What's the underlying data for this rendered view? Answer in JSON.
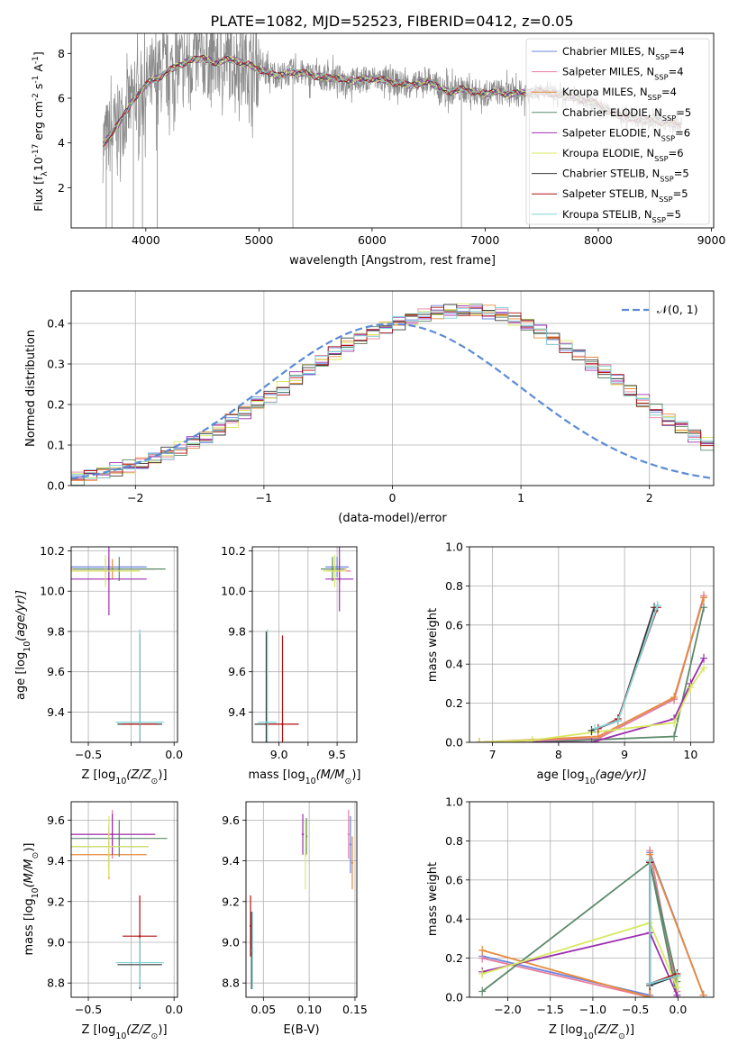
{
  "figure_title": "PLATE=1082, MJD=52523, FIBERID=0412, z=0.05",
  "models": [
    {
      "name": "Chabrier MILES, N_SSP=4",
      "label": "Chabrier MILES, N",
      "sub": "SSP",
      "suffix": "=4",
      "color": "#6a85e0"
    },
    {
      "name": "Salpeter MILES, N_SSP=4",
      "label": "Salpeter MILES, N",
      "sub": "SSP",
      "suffix": "=4",
      "color": "#e87d9c"
    },
    {
      "name": "Kroupa MILES, N_SSP=4",
      "label": "Kroupa MILES, N",
      "sub": "SSP",
      "suffix": "=4",
      "color": "#e88a3c"
    },
    {
      "name": "Chabrier ELODIE, N_SSP=5",
      "label": "Chabrier ELODIE, N",
      "sub": "SSP",
      "suffix": "=5",
      "color": "#5b8a6a"
    },
    {
      "name": "Salpeter ELODIE, N_SSP=6",
      "label": "Salpeter ELODIE, N",
      "sub": "SSP",
      "suffix": "=6",
      "color": "#9b2fb0"
    },
    {
      "name": "Kroupa ELODIE, N_SSP=6",
      "label": "Kroupa ELODIE, N",
      "sub": "SSP",
      "suffix": "=6",
      "color": "#d8e860"
    },
    {
      "name": "Chabrier STELIB, N_SSP=5",
      "label": "Chabrier STELIB, N",
      "sub": "SSP",
      "suffix": "=5",
      "color": "#3a3a3a"
    },
    {
      "name": "Salpeter STELIB, N_SSP=5",
      "label": "Salpeter STELIB, N",
      "sub": "SSP",
      "suffix": "=5",
      "color": "#b01010"
    },
    {
      "name": "Kroupa STELIB, N_SSP=5",
      "label": "Kroupa STELIB, N",
      "sub": "SSP",
      "suffix": "=5",
      "color": "#7fd4d8"
    }
  ],
  "chart_data": [
    {
      "id": "spectrum",
      "type": "line",
      "xlabel": "wavelength [Angstrom, rest frame]",
      "ylabel": "Flux [f",
      "ylabel_parts": [
        "Flux [f",
        "λ",
        "10",
        "-17",
        " erg cm",
        "-2",
        " s",
        "-1",
        " A",
        "-1",
        "]"
      ],
      "xlim": [
        3340,
        9020
      ],
      "ylim": [
        0.2,
        8.9
      ],
      "xticks": [
        4000,
        5000,
        6000,
        7000,
        8000,
        9000
      ],
      "yticks": [
        2,
        4,
        6,
        8
      ],
      "legend_position": "top-right",
      "data_series": {
        "name": "data",
        "color": "#8a8a8a"
      },
      "continuum_x": [
        3620,
        3700,
        3800,
        3900,
        4000,
        4100,
        4200,
        4300,
        4400,
        4500,
        4600,
        4700,
        4800,
        4900,
        5000,
        5100,
        5200,
        5300,
        5400,
        5500,
        5600,
        5700,
        5800,
        5900,
        6000,
        6100,
        6200,
        6300,
        6400,
        6500,
        6600,
        6700,
        6800,
        6900,
        7000,
        7100,
        7200,
        7300,
        7400,
        7500,
        7600,
        7700,
        7800,
        7900,
        8000,
        8100,
        8200,
        8300,
        8400,
        8500,
        8600,
        8700,
        8740
      ],
      "continuum_y": [
        4.0,
        4.4,
        5.2,
        6.0,
        6.6,
        6.9,
        7.2,
        7.5,
        7.7,
        7.8,
        7.6,
        7.7,
        7.7,
        7.5,
        7.3,
        7.1,
        7.0,
        7.2,
        7.1,
        7.0,
        6.9,
        6.9,
        6.8,
        6.8,
        6.9,
        6.8,
        6.7,
        6.6,
        6.6,
        6.8,
        6.4,
        6.3,
        6.4,
        6.3,
        6.2,
        6.3,
        6.2,
        6.2,
        6.3,
        6.3,
        6.2,
        6.1,
        6.0,
        5.9,
        5.7,
        5.4,
        5.2,
        5.1,
        5.0,
        5.0,
        4.9,
        4.8,
        4.8
      ]
    },
    {
      "id": "residuals",
      "type": "step",
      "xlabel": "(data-model)/error",
      "ylabel": "Normed distribution",
      "xlim": [
        -2.5,
        2.5
      ],
      "ylim": [
        0.0,
        0.48
      ],
      "xticks": [
        -2,
        -1,
        0,
        1,
        2
      ],
      "yticks": [
        0.0,
        0.1,
        0.2,
        0.3,
        0.4
      ],
      "grid": true,
      "legend_position": "top-right",
      "reference_label": "𝒩(0, 1)",
      "reference_color": "#5b8bd6",
      "bin_width": 0.1,
      "bin_start": -2.5,
      "histogram_values": [
        0.018,
        0.025,
        0.032,
        0.04,
        0.046,
        0.054,
        0.065,
        0.078,
        0.091,
        0.107,
        0.121,
        0.14,
        0.161,
        0.181,
        0.204,
        0.22,
        0.24,
        0.264,
        0.285,
        0.305,
        0.325,
        0.347,
        0.363,
        0.379,
        0.393,
        0.402,
        0.411,
        0.42,
        0.426,
        0.43,
        0.433,
        0.432,
        0.428,
        0.421,
        0.41,
        0.398,
        0.382,
        0.365,
        0.345,
        0.323,
        0.3,
        0.28,
        0.258,
        0.233,
        0.208,
        0.184,
        0.163,
        0.143,
        0.123,
        0.105,
        0.088,
        0.074,
        0.062,
        0.05,
        0.04,
        0.032,
        0.025,
        0.02,
        0.017,
        0.015
      ]
    },
    {
      "id": "age_vs_Z",
      "type": "scatter",
      "xlabel": "Z [log",
      "xlabel_parts": [
        "Z [log",
        "10",
        "(Z/Z",
        "⊙",
        ")]"
      ],
      "ylabel": "age  [log",
      "ylabel_parts": [
        "age  [log",
        "10",
        "(age/yr)]"
      ],
      "xlim": [
        -0.6,
        0.02
      ],
      "ylim": [
        9.25,
        10.22
      ],
      "xticks": [
        -0.5,
        -0.25,
        0.0
      ],
      "xtick_labels": [
        "−0.5",
        "",
        "0.0"
      ],
      "yticks": [
        9.4,
        9.6,
        9.8,
        10.0,
        10.2
      ],
      "grid": true,
      "points": [
        {
          "series": 0,
          "x": -0.38,
          "y": 10.12,
          "xerr": 0.22,
          "yerr": 0.05
        },
        {
          "series": 1,
          "x": -0.4,
          "y": 10.1,
          "xerr": 0.2,
          "yerr": 0.06
        },
        {
          "series": 2,
          "x": -0.36,
          "y": 10.11,
          "xerr": 0.25,
          "yerr": 0.05
        },
        {
          "series": 3,
          "x": -0.32,
          "y": 10.11,
          "xerr": 0.27,
          "yerr": 0.06
        },
        {
          "series": 4,
          "x": -0.38,
          "y": 10.06,
          "xerr": 0.22,
          "yerr": 0.18
        },
        {
          "series": 5,
          "x": -0.4,
          "y": 10.1,
          "xerr": 0.2,
          "yerr": 0.08
        },
        {
          "series": 6,
          "x": -0.2,
          "y": 9.34,
          "xerr": 0.13,
          "yerr": 0.45
        },
        {
          "series": 7,
          "x": -0.2,
          "y": 9.34,
          "xerr": 0.1,
          "yerr": 0.45
        },
        {
          "series": 8,
          "x": -0.2,
          "y": 9.35,
          "xerr": 0.14,
          "yerr": 0.46
        }
      ]
    },
    {
      "id": "age_vs_mass",
      "type": "scatter",
      "xlabel": "mass [log",
      "xlabel_parts": [
        "mass [log",
        "10",
        "(M/M",
        "⊙",
        ")]"
      ],
      "xlim": [
        8.77,
        9.67
      ],
      "ylim": [
        9.25,
        10.22
      ],
      "xticks": [
        9.0,
        9.25,
        9.5
      ],
      "xtick_labels": [
        "9.0",
        "",
        "9.5"
      ],
      "yticks": [
        9.4,
        9.6,
        9.8,
        10.0,
        10.2
      ],
      "grid": true,
      "points": [
        {
          "series": 0,
          "x": 9.5,
          "y": 10.12,
          "xerr": 0.1,
          "yerr": 0.05
        },
        {
          "series": 1,
          "x": 9.52,
          "y": 10.1,
          "xerr": 0.1,
          "yerr": 0.06
        },
        {
          "series": 2,
          "x": 9.48,
          "y": 10.11,
          "xerr": 0.1,
          "yerr": 0.05
        },
        {
          "series": 3,
          "x": 9.46,
          "y": 10.11,
          "xerr": 0.1,
          "yerr": 0.06
        },
        {
          "series": 4,
          "x": 9.52,
          "y": 10.06,
          "xerr": 0.12,
          "yerr": 0.16
        },
        {
          "series": 5,
          "x": 9.48,
          "y": 10.1,
          "xerr": 0.1,
          "yerr": 0.08
        },
        {
          "series": 6,
          "x": 8.89,
          "y": 9.34,
          "xerr": 0.1,
          "yerr": 0.46
        },
        {
          "series": 7,
          "x": 9.03,
          "y": 9.34,
          "xerr": 0.14,
          "yerr": 0.44
        },
        {
          "series": 8,
          "x": 8.9,
          "y": 9.35,
          "xerr": 0.08,
          "yerr": 0.46
        }
      ]
    },
    {
      "id": "massweight_vs_age",
      "type": "line",
      "xlabel": "age  [log",
      "xlabel_parts": [
        "age  [log",
        "10",
        "(age/yr)]"
      ],
      "ylabel": "mass weight",
      "xlim": [
        6.65,
        10.35
      ],
      "ylim": [
        0.0,
        1.0
      ],
      "xticks": [
        7,
        8,
        9,
        10
      ],
      "yticks": [
        0.0,
        0.2,
        0.4,
        0.6,
        0.8,
        1.0
      ],
      "grid": true,
      "series": [
        {
          "series": 0,
          "x": [
            6.8,
            8.6,
            9.75,
            10.2
          ],
          "y": [
            0.0,
            0.02,
            0.22,
            0.74
          ]
        },
        {
          "series": 1,
          "x": [
            6.8,
            8.6,
            9.75,
            10.2
          ],
          "y": [
            0.0,
            0.02,
            0.22,
            0.75
          ]
        },
        {
          "series": 2,
          "x": [
            6.8,
            8.6,
            9.75,
            10.2
          ],
          "y": [
            0.0,
            0.03,
            0.23,
            0.74
          ]
        },
        {
          "series": 3,
          "x": [
            7.6,
            9.75,
            10.2
          ],
          "y": [
            0.0,
            0.03,
            0.69
          ]
        },
        {
          "series": 4,
          "x": [
            7.6,
            8.5,
            9.75,
            10.0,
            10.2
          ],
          "y": [
            0.0,
            0.0,
            0.12,
            0.3,
            0.43
          ]
        },
        {
          "series": 5,
          "x": [
            6.8,
            7.6,
            8.5,
            9.75,
            10.0,
            10.2
          ],
          "y": [
            0.0,
            0.01,
            0.05,
            0.1,
            0.28,
            0.38
          ]
        },
        {
          "series": 6,
          "x": [
            8.5,
            8.9,
            9.45
          ],
          "y": [
            0.06,
            0.11,
            0.69
          ]
        },
        {
          "series": 7,
          "x": [
            8.6,
            8.9,
            9.5
          ],
          "y": [
            0.07,
            0.12,
            0.69
          ]
        },
        {
          "series": 8,
          "x": [
            8.55,
            8.9,
            9.5
          ],
          "y": [
            0.07,
            0.11,
            0.7
          ]
        }
      ]
    },
    {
      "id": "mass_vs_Z",
      "type": "scatter",
      "xlabel": "Z [log",
      "xlabel_parts": [
        "Z [log",
        "10",
        "(Z/Z",
        "⊙",
        ")]"
      ],
      "ylabel": "mass [log",
      "ylabel_parts": [
        "mass [log",
        "10",
        "(M/M",
        "⊙",
        ")]"
      ],
      "xlim": [
        -0.6,
        0.02
      ],
      "ylim": [
        8.73,
        9.69
      ],
      "xticks": [
        -0.5,
        -0.25,
        0.0
      ],
      "xtick_labels": [
        "−0.5",
        "",
        "0.0"
      ],
      "yticks": [
        8.8,
        9.0,
        9.2,
        9.4,
        9.6
      ],
      "grid": true,
      "points": [
        {
          "series": 0,
          "x": -0.38,
          "y": 9.47,
          "xerr": 0.23,
          "yerr": 0.1
        },
        {
          "series": 1,
          "x": -0.36,
          "y": 9.53,
          "xerr": 0.25,
          "yerr": 0.12
        },
        {
          "series": 2,
          "x": -0.38,
          "y": 9.43,
          "xerr": 0.22,
          "yerr": 0.12
        },
        {
          "series": 3,
          "x": -0.32,
          "y": 9.51,
          "xerr": 0.28,
          "yerr": 0.09
        },
        {
          "series": 4,
          "x": -0.36,
          "y": 9.53,
          "xerr": 0.25,
          "yerr": 0.1
        },
        {
          "series": 5,
          "x": -0.38,
          "y": 9.47,
          "xerr": 0.23,
          "yerr": 0.15
        },
        {
          "series": 6,
          "x": -0.2,
          "y": 8.89,
          "xerr": 0.13,
          "yerr": 0.12
        },
        {
          "series": 7,
          "x": -0.2,
          "y": 9.03,
          "xerr": 0.1,
          "yerr": 0.2
        },
        {
          "series": 8,
          "x": -0.2,
          "y": 8.9,
          "xerr": 0.14,
          "yerr": 0.12
        }
      ]
    },
    {
      "id": "mass_vs_EBV",
      "type": "scatter",
      "xlabel": "E(B-V)",
      "xlim": [
        0.031,
        0.152
      ],
      "ylim": [
        8.73,
        9.69
      ],
      "xticks": [
        0.05,
        0.1,
        0.15
      ],
      "xtick_labels": [
        "0.05",
        "0.10",
        "0.15"
      ],
      "yticks": [
        8.8,
        9.0,
        9.2,
        9.4,
        9.6
      ],
      "grid": true,
      "points": [
        {
          "series": 0,
          "x": 0.145,
          "y": 9.48,
          "xerr": 0.0,
          "yerr": 0.14
        },
        {
          "series": 1,
          "x": 0.143,
          "y": 9.53,
          "xerr": 0.0,
          "yerr": 0.12
        },
        {
          "series": 2,
          "x": 0.147,
          "y": 9.39,
          "xerr": 0.0,
          "yerr": 0.13
        },
        {
          "series": 3,
          "x": 0.097,
          "y": 9.52,
          "xerr": 0.0,
          "yerr": 0.09
        },
        {
          "series": 4,
          "x": 0.093,
          "y": 9.53,
          "xerr": 0.0,
          "yerr": 0.1
        },
        {
          "series": 5,
          "x": 0.096,
          "y": 9.43,
          "xerr": 0.0,
          "yerr": 0.17
        },
        {
          "series": 6,
          "x": 0.037,
          "y": 8.96,
          "xerr": 0.0,
          "yerr": 0.19
        },
        {
          "series": 7,
          "x": 0.036,
          "y": 9.08,
          "xerr": 0.0,
          "yerr": 0.15
        },
        {
          "series": 8,
          "x": 0.038,
          "y": 8.96,
          "xerr": 0.0,
          "yerr": 0.19
        }
      ]
    },
    {
      "id": "massweight_vs_Z",
      "type": "line",
      "xlabel": "Z [log",
      "xlabel_parts": [
        "Z [log",
        "10",
        "(Z/Z",
        "⊙",
        ")]"
      ],
      "ylabel": "mass weight",
      "xlim": [
        -2.45,
        0.42
      ],
      "ylim": [
        0.0,
        1.0
      ],
      "xticks": [
        -2.0,
        -1.5,
        -1.0,
        -0.5,
        0.0
      ],
      "xtick_labels": [
        "−2.0",
        "−1.5",
        "−1.0",
        "−0.5",
        "0.0"
      ],
      "yticks": [
        0.0,
        0.2,
        0.4,
        0.6,
        0.8,
        1.0
      ],
      "grid": true,
      "series": [
        {
          "series": 0,
          "x": [
            -2.3,
            -0.33,
            -0.33,
            0.3
          ],
          "y": [
            0.21,
            0.01,
            0.74,
            0.01
          ]
        },
        {
          "series": 1,
          "x": [
            -2.3,
            -0.33,
            -0.33,
            -0.01
          ],
          "y": [
            0.2,
            0.0,
            0.75,
            0.03
          ]
        },
        {
          "series": 2,
          "x": [
            -2.3,
            -0.33,
            -0.33,
            0.3
          ],
          "y": [
            0.24,
            0.0,
            0.73,
            0.01
          ]
        },
        {
          "series": 3,
          "x": [
            -2.3,
            -0.33,
            -0.01,
            -0.33,
            -0.01
          ],
          "y": [
            0.03,
            0.69,
            0.0,
            0.69,
            0.08
          ]
        },
        {
          "series": 4,
          "x": [
            -2.3,
            -0.33,
            -0.01
          ],
          "y": [
            0.13,
            0.33,
            0.01
          ]
        },
        {
          "series": 5,
          "x": [
            -2.3,
            -0.33,
            -0.01,
            -0.01
          ],
          "y": [
            0.12,
            0.38,
            0.05,
            0.1
          ]
        },
        {
          "series": 6,
          "x": [
            -0.33,
            -0.33,
            -0.01
          ],
          "y": [
            0.69,
            0.06,
            0.11
          ]
        },
        {
          "series": 7,
          "x": [
            -0.33,
            -0.33,
            -0.01
          ],
          "y": [
            0.69,
            0.07,
            0.12
          ]
        },
        {
          "series": 8,
          "x": [
            -0.33,
            -0.33,
            -0.01
          ],
          "y": [
            0.7,
            0.07,
            0.11
          ]
        }
      ]
    }
  ]
}
